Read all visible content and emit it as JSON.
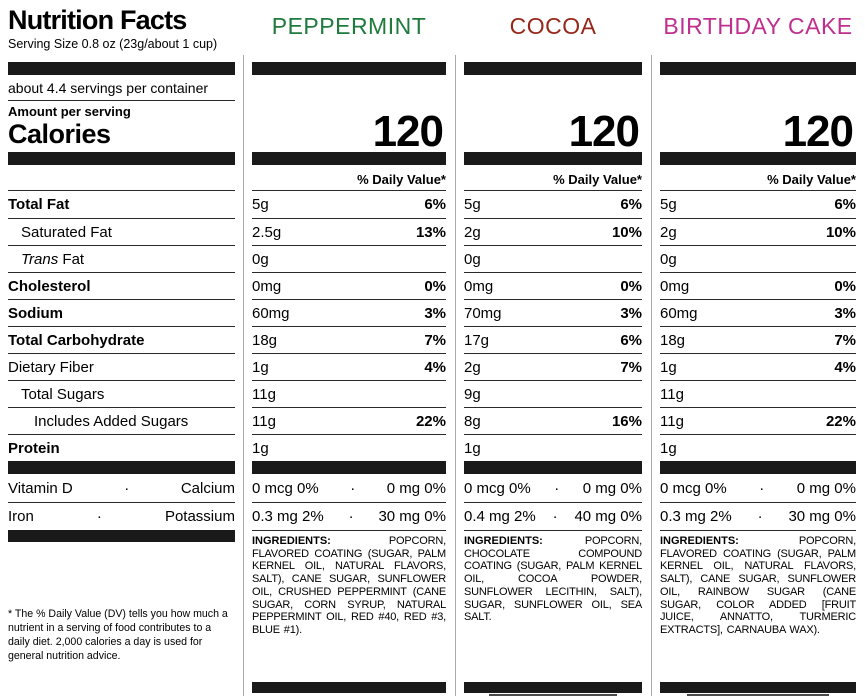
{
  "label": {
    "title": "Nutrition Facts",
    "serving_size": "Serving Size 0.8 oz (23g/about 1 cup)",
    "servings_per_container": "about 4.4 servings per container",
    "amount_per_serving": "Amount per serving",
    "calories_label": "Calories",
    "daily_value_header": "% Daily Value*",
    "dot": "·",
    "ingredients_label": "INGREDIENTS:",
    "footnote": "* The % Daily Value (DV) tells you how much a nutrient in a serving of food contributes to a daily diet. 2,000 calories a day is used for general nutrition advice.",
    "rows": [
      {
        "name": "Total Fat"
      },
      {
        "name": "Saturated Fat"
      },
      {
        "name": "Trans Fat",
        "italic": "Trans",
        "rest": " Fat"
      },
      {
        "name": "Cholesterol"
      },
      {
        "name": "Sodium"
      },
      {
        "name": "Total Carbohydrate"
      },
      {
        "name": "Dietary Fiber"
      },
      {
        "name": "Total Sugars"
      },
      {
        "name": "Includes Added Sugars"
      },
      {
        "name": "Protein"
      }
    ],
    "micro_rows": [
      {
        "a": "Vitamin D",
        "b": "Calcium"
      },
      {
        "a": "Iron",
        "b": "Potassium"
      }
    ]
  },
  "flavors": [
    {
      "name": "PEPPERMINT",
      "color": "#1E7B3C",
      "calories": "120",
      "values": [
        {
          "amount": "5g",
          "dv": "6%"
        },
        {
          "amount": "2.5g",
          "dv": "13%"
        },
        {
          "amount": "0g",
          "dv": ""
        },
        {
          "amount": "0mg",
          "dv": "0%"
        },
        {
          "amount": "60mg",
          "dv": "3%"
        },
        {
          "amount": "18g",
          "dv": "7%"
        },
        {
          "amount": "1g",
          "dv": "4%"
        },
        {
          "amount": "11g",
          "dv": ""
        },
        {
          "amount": "11g",
          "dv": "22%"
        },
        {
          "amount": "1g",
          "dv": ""
        }
      ],
      "micro": [
        {
          "a": "0 mcg 0%",
          "b": "0 mg 0%"
        },
        {
          "a": "0.3 mg 2%",
          "b": "30 mg 0%"
        }
      ],
      "ingredients": "POPCORN, FLAVORED COATING (SUGAR, PALM KERNEL OIL, NATURAL FLAVORS, SALT), CANE SUGAR, SUNFLOWER OIL, CRUSHED PEPPERMINT (CANE SUGAR, CORN SYRUP, NATURAL PEPPERMINT OIL, RED #40, RED #3, BLUE #1)."
    },
    {
      "name": "COCOA",
      "color": "#97271A",
      "calories": "120",
      "values": [
        {
          "amount": "5g",
          "dv": "6%"
        },
        {
          "amount": "2g",
          "dv": "10%"
        },
        {
          "amount": "0g",
          "dv": ""
        },
        {
          "amount": "0mg",
          "dv": "0%"
        },
        {
          "amount": "70mg",
          "dv": "3%"
        },
        {
          "amount": "17g",
          "dv": "6%"
        },
        {
          "amount": "2g",
          "dv": "7%"
        },
        {
          "amount": "9g",
          "dv": ""
        },
        {
          "amount": "8g",
          "dv": "16%"
        },
        {
          "amount": "1g",
          "dv": ""
        }
      ],
      "micro": [
        {
          "a": "0 mcg 0%",
          "b": "0 mg 0%"
        },
        {
          "a": "0.4 mg 2%",
          "b": "40 mg 0%"
        }
      ],
      "ingredients": "POPCORN, CHOCOLATE COMPOUND COATING (SUGAR, PALM KERNEL OIL, COCOA POWDER, SUNFLOWER LECITHIN, SALT), SUGAR, SUNFLOWER OIL, SEA SALT."
    },
    {
      "name": "BIRTHDAY CAKE",
      "color": "#C02F8F",
      "calories": "120",
      "values": [
        {
          "amount": "5g",
          "dv": "6%"
        },
        {
          "amount": "2g",
          "dv": "10%"
        },
        {
          "amount": "0g",
          "dv": ""
        },
        {
          "amount": "0mg",
          "dv": "0%"
        },
        {
          "amount": "60mg",
          "dv": "3%"
        },
        {
          "amount": "18g",
          "dv": "7%"
        },
        {
          "amount": "1g",
          "dv": "4%"
        },
        {
          "amount": "11g",
          "dv": ""
        },
        {
          "amount": "11g",
          "dv": "22%"
        },
        {
          "amount": "1g",
          "dv": ""
        }
      ],
      "micro": [
        {
          "a": "0 mcg 0%",
          "b": "0 mg 0%"
        },
        {
          "a": "0.3 mg 2%",
          "b": "30 mg 0%"
        }
      ],
      "ingredients": "POPCORN, FLAVORED COATING (SUGAR, PALM KERNEL OIL, NATURAL FLAVORS, SALT), CANE SUGAR, SUNFLOWER OIL, RAINBOW SUGAR (CANE SUGAR, COLOR ADDED [FRUIT JUICE, ANNATTO, TURMERIC EXTRACTS], CARNAUBA WAX)."
    }
  ]
}
